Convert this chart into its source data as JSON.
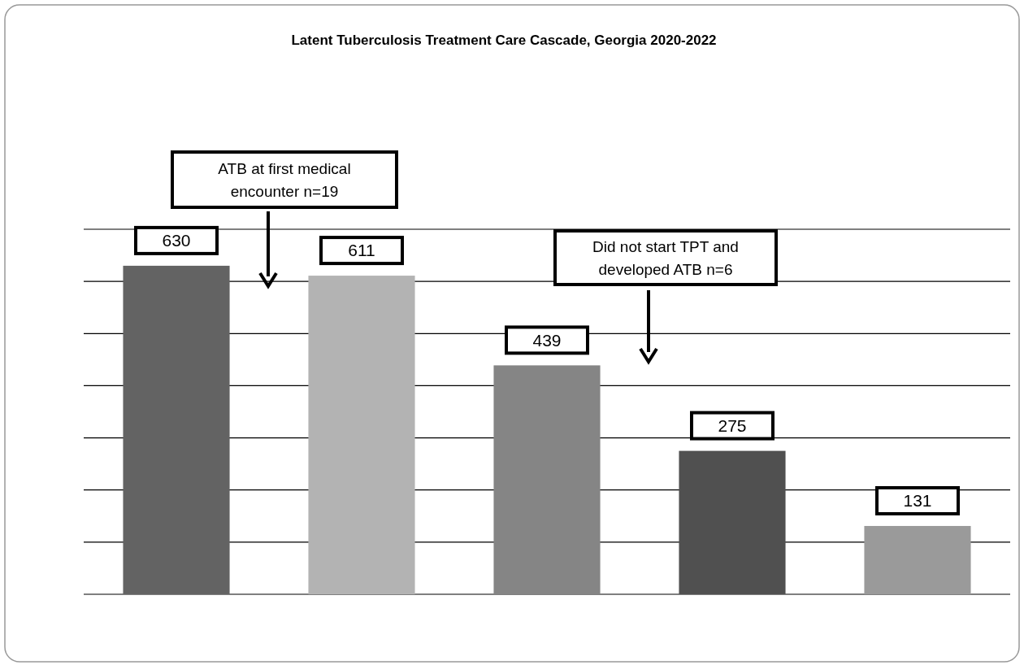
{
  "chart_data": {
    "type": "bar",
    "title": "Latent Tuberculosis Treatment Care Cascade, Georgia 2020-2022",
    "categories": [
      null,
      null,
      null,
      null,
      null
    ],
    "values": [
      630,
      611,
      439,
      275,
      131
    ],
    "colors": [
      "#636363",
      "#b3b3b3",
      "#858585",
      "#505050",
      "#9a9a9a"
    ],
    "ylim": [
      0,
      700
    ],
    "yticks": [
      {
        "value": 0,
        "label": null
      },
      {
        "value": 100,
        "label": null
      },
      {
        "value": 200,
        "label": null
      },
      {
        "value": 300,
        "label": null
      },
      {
        "value": 400,
        "label": null
      },
      {
        "value": 500,
        "label": null
      },
      {
        "value": 600,
        "label": null
      },
      {
        "value": 700,
        "label": null
      }
    ],
    "grid": "y",
    "data_labels": true,
    "annotations": [
      "ATB at first medical encounter n=19",
      "Did not start TPT and developed ATB n=6"
    ]
  }
}
